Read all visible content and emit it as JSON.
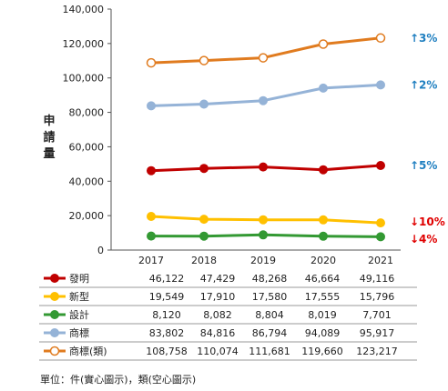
{
  "chart_data": {
    "type": "line",
    "ylabel": "申請量",
    "ylim": [
      0,
      140000
    ],
    "yticks": [
      0,
      20000,
      40000,
      60000,
      80000,
      100000,
      120000,
      140000
    ],
    "ytick_labels": [
      "0",
      "20,000",
      "40,000",
      "60,000",
      "80,000",
      "100,000",
      "120,000",
      "140,000"
    ],
    "categories": [
      "2017",
      "2018",
      "2019",
      "2020",
      "2021"
    ],
    "grid": false,
    "series": [
      {
        "name": "發明",
        "color": "#c00000",
        "marker": "filled",
        "values": [
          46122,
          47429,
          48268,
          46664,
          49116
        ],
        "labels": [
          "46,122",
          "47,429",
          "48,268",
          "46,664",
          "49,116"
        ]
      },
      {
        "name": "新型",
        "color": "#ffc000",
        "marker": "filled",
        "values": [
          19549,
          17910,
          17580,
          17555,
          15796
        ],
        "labels": [
          "19,549",
          "17,910",
          "17,580",
          "17,555",
          "15,796"
        ]
      },
      {
        "name": "設計",
        "color": "#339933",
        "marker": "filled",
        "values": [
          8120,
          8082,
          8804,
          8019,
          7701
        ],
        "labels": [
          "8,120",
          "8,082",
          "8,804",
          "8,019",
          "7,701"
        ]
      },
      {
        "name": "商標",
        "color": "#95b3d7",
        "marker": "filled",
        "values": [
          83802,
          84816,
          86794,
          94089,
          95917
        ],
        "labels": [
          "83,802",
          "84,816",
          "86,794",
          "94,089",
          "95,917"
        ]
      },
      {
        "name": "商標(類)",
        "color": "#e07b1f",
        "marker": "hollow",
        "values": [
          108758,
          110074,
          111681,
          119660,
          123217
        ],
        "labels": [
          "108,758",
          "110,074",
          "111,681",
          "119,660",
          "123,217"
        ]
      }
    ],
    "annotations": [
      {
        "series": "商標(類)",
        "text": "↑3%",
        "color": "#1f7fc0"
      },
      {
        "series": "商標",
        "text": "↑2%",
        "color": "#1f7fc0"
      },
      {
        "series": "發明",
        "text": "↑5%",
        "color": "#1f7fc0"
      },
      {
        "series": "新型",
        "text": "↓10%",
        "color": "#e00000"
      },
      {
        "series": "設計",
        "text": "↓4%",
        "color": "#e00000"
      }
    ],
    "footnote": "單位：件(實心圖示)，類(空心圖示)"
  }
}
